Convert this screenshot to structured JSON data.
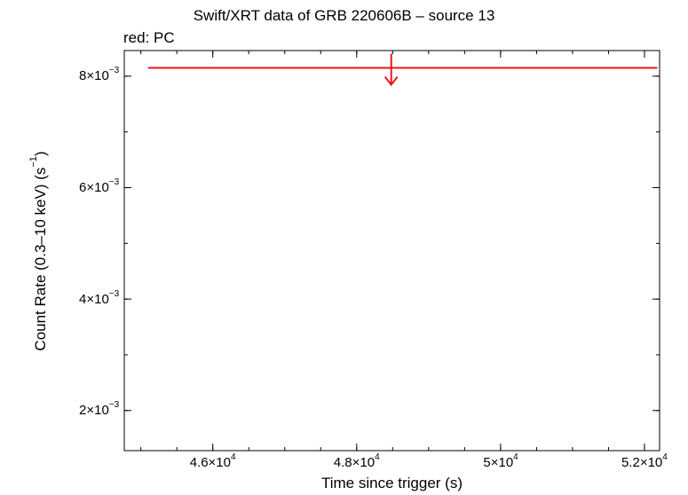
{
  "chart_data": {
    "type": "scatter",
    "title": "Swift/XRT data of GRB 220606B – source 13",
    "subtitle": "red: PC",
    "xlabel": "Time since trigger (s)",
    "ylabel_main": "Count Rate (0.3–10 keV) (s",
    "ylabel_sup": "−1",
    "ylabel_end": ")",
    "x_scale": "linear",
    "y_scale": "linear",
    "xlim": [
      44770,
      52210
    ],
    "ylim": [
      0.00128,
      0.00846
    ],
    "grid": false,
    "x_ticks": [
      {
        "value": 46000,
        "mant": "4.6×10",
        "exp": "4"
      },
      {
        "value": 48000,
        "mant": "4.8×10",
        "exp": "4"
      },
      {
        "value": 50000,
        "mant": "5×10",
        "exp": "4"
      },
      {
        "value": 52000,
        "mant": "5.2×10",
        "exp": "4"
      }
    ],
    "y_ticks": [
      {
        "value": 0.002,
        "mant": "2×10",
        "exp": "−3"
      },
      {
        "value": 0.004,
        "mant": "4×10",
        "exp": "−3"
      },
      {
        "value": 0.006,
        "mant": "6×10",
        "exp": "−3"
      },
      {
        "value": 0.008,
        "mant": "8×10",
        "exp": "−3"
      }
    ],
    "series": [
      {
        "color": "#e8191a",
        "points": [
          {
            "x": 48480,
            "x_start": 45100,
            "x_end": 52180,
            "y": 0.00815,
            "upper_limit": true
          }
        ]
      }
    ]
  }
}
